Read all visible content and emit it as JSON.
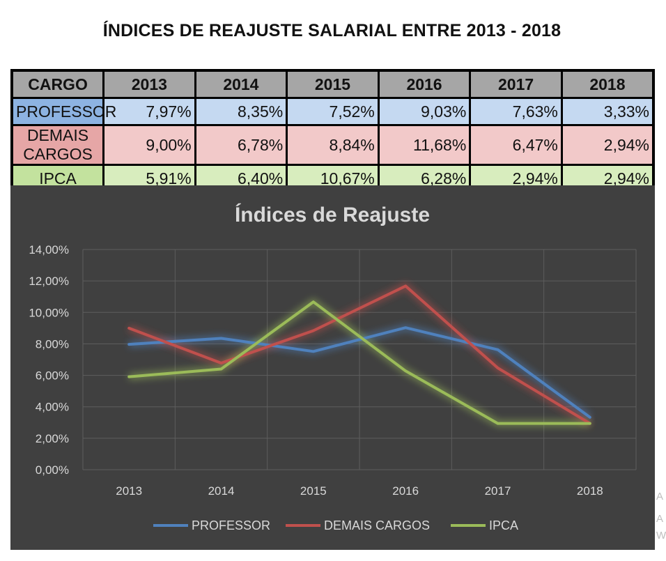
{
  "page_title": "ÍNDICES DE REAJUSTE SALARIAL ENTRE 2013 - 2018",
  "table": {
    "header": [
      "CARGO",
      "2013",
      "2014",
      "2015",
      "2016",
      "2017",
      "2018"
    ],
    "rows": [
      {
        "label": "PROFESSOR",
        "values": [
          "7,97%",
          "8,35%",
          "7,52%",
          "9,03%",
          "7,63%",
          "3,33%"
        ]
      },
      {
        "label": "DEMAIS CARGOS",
        "values": [
          "9,00%",
          "6,78%",
          "8,84%",
          "11,68%",
          "6,47%",
          "2,94%"
        ]
      },
      {
        "label": "IPCA",
        "values": [
          "5,91%",
          "6,40%",
          "10,67%",
          "6,28%",
          "2,94%",
          "2,94%"
        ]
      }
    ]
  },
  "chart_data": {
    "type": "line",
    "title": "Índices de Reajuste",
    "categories": [
      "2013",
      "2014",
      "2015",
      "2016",
      "2017",
      "2018"
    ],
    "yticks": [
      "0,00%",
      "2,00%",
      "4,00%",
      "6,00%",
      "8,00%",
      "10,00%",
      "12,00%",
      "14,00%"
    ],
    "ylim": [
      0,
      14
    ],
    "grid": true,
    "legend_position": "bottom",
    "series": [
      {
        "name": "PROFESSOR",
        "values": [
          7.97,
          8.35,
          7.52,
          9.03,
          7.63,
          3.33
        ],
        "color": "#4f81bd"
      },
      {
        "name": "DEMAIS CARGOS",
        "values": [
          9.0,
          6.78,
          8.84,
          11.68,
          6.47,
          2.94
        ],
        "color": "#c0504d"
      },
      {
        "name": "IPCA",
        "values": [
          5.91,
          6.4,
          10.67,
          6.28,
          2.94,
          2.94
        ],
        "color": "#9bbb59"
      }
    ],
    "background": "#404040"
  },
  "side_letters": [
    "A",
    "A",
    "W"
  ]
}
